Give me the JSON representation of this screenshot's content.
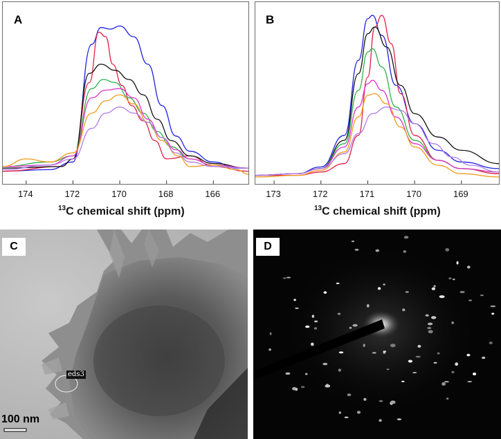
{
  "panels": {
    "A": {
      "label": "A",
      "xlabel_sup": "13",
      "xlabel_rest": "C chemical shift (ppm)",
      "ticks": [
        "174",
        "172",
        "170",
        "168",
        "166"
      ]
    },
    "B": {
      "label": "B",
      "xlabel_sup": "13",
      "xlabel_rest": "C chemical shift (ppm)",
      "ticks": [
        "173",
        "172",
        "171",
        "170",
        "169"
      ]
    },
    "C": {
      "label": "C",
      "scale_label": "100 nm",
      "annotation": "eds3"
    },
    "D": {
      "label": "D"
    }
  },
  "chart_data": [
    {
      "type": "line",
      "panel": "A",
      "xlabel": "13C chemical shift (ppm)",
      "xlim": [
        175,
        164.5
      ],
      "x_reversed": true,
      "series": [
        {
          "color": "#1f1fe0",
          "x": [
            175,
            173,
            172,
            171.2,
            170.8,
            170.4,
            170.0,
            169.4,
            168.8,
            168.2,
            167.6,
            167,
            166,
            165,
            164.5
          ],
          "y": [
            0.02,
            0.03,
            0.08,
            0.85,
            0.96,
            0.95,
            0.97,
            0.9,
            0.72,
            0.45,
            0.25,
            0.15,
            0.08,
            0.04,
            0.04
          ]
        },
        {
          "color": "#e0204a",
          "x": [
            175,
            172.5,
            172,
            171.3,
            170.9,
            170.6,
            170.3,
            169.9,
            169.5,
            169.0,
            168.5,
            168,
            167,
            166,
            164.5
          ],
          "y": [
            0.02,
            0.05,
            0.1,
            0.6,
            0.93,
            0.9,
            0.72,
            0.58,
            0.45,
            0.35,
            0.22,
            0.1,
            0.12,
            0.05,
            0.02
          ]
        },
        {
          "color": "#111111",
          "x": [
            175,
            172.5,
            172,
            171.3,
            170.8,
            170.2,
            169.6,
            169.0,
            168.4,
            167.8,
            167,
            166,
            164.5
          ],
          "y": [
            0.04,
            0.05,
            0.1,
            0.66,
            0.72,
            0.68,
            0.62,
            0.52,
            0.36,
            0.22,
            0.12,
            0.07,
            0.04
          ]
        },
        {
          "color": "#2bb34a",
          "x": [
            175,
            173,
            172,
            171.2,
            170.7,
            170.2,
            169.6,
            169.0,
            168.4,
            167.8,
            167,
            166,
            164.5
          ],
          "y": [
            0.05,
            0.08,
            0.12,
            0.56,
            0.62,
            0.6,
            0.5,
            0.4,
            0.28,
            0.18,
            0.1,
            0.06,
            0.04
          ]
        },
        {
          "color": "#e033c8",
          "x": [
            175,
            173,
            172,
            171.2,
            170.6,
            170.0,
            169.4,
            168.8,
            168.2,
            167.6,
            167,
            166,
            164.5
          ],
          "y": [
            0.05,
            0.06,
            0.12,
            0.5,
            0.55,
            0.56,
            0.5,
            0.36,
            0.24,
            0.16,
            0.1,
            0.06,
            0.04
          ]
        },
        {
          "color": "#f29a1a",
          "x": [
            175,
            174,
            173,
            172,
            171.2,
            170.6,
            170.0,
            169.4,
            168.8,
            168.2,
            167.5,
            167,
            166,
            165,
            164.5
          ],
          "y": [
            0.05,
            0.1,
            0.08,
            0.14,
            0.4,
            0.48,
            0.52,
            0.46,
            0.34,
            0.22,
            0.12,
            0.05,
            0.06,
            0.03,
            0.0
          ]
        },
        {
          "color": "#b07de8",
          "x": [
            175,
            173,
            172,
            171.2,
            170.6,
            170.0,
            169.4,
            168.8,
            168.2,
            167.6,
            167,
            166,
            164.5
          ],
          "y": [
            0.03,
            0.06,
            0.1,
            0.3,
            0.4,
            0.44,
            0.4,
            0.34,
            0.24,
            0.14,
            0.08,
            0.05,
            0.04
          ]
        }
      ]
    },
    {
      "type": "line",
      "panel": "B",
      "xlabel": "13C chemical shift (ppm)",
      "xlim": [
        173.4,
        168.2
      ],
      "x_reversed": true,
      "series": [
        {
          "color": "#1f1fe0",
          "x": [
            173.4,
            172.5,
            172.0,
            171.5,
            171.2,
            171.0,
            170.9,
            170.7,
            170.4,
            170.0,
            169.5,
            169.0,
            168.2
          ],
          "y": [
            0.01,
            0.02,
            0.06,
            0.25,
            0.7,
            0.95,
            0.97,
            0.85,
            0.55,
            0.32,
            0.16,
            0.09,
            0.05
          ]
        },
        {
          "color": "#e0204a",
          "x": [
            173.4,
            172.5,
            172.0,
            171.5,
            171.2,
            171.0,
            170.85,
            170.7,
            170.5,
            170.3,
            170.0,
            169.5,
            169.0,
            168.2
          ],
          "y": [
            0.01,
            0.01,
            0.03,
            0.08,
            0.25,
            0.6,
            0.9,
            0.97,
            0.8,
            0.5,
            0.25,
            0.1,
            0.05,
            0.02
          ]
        },
        {
          "color": "#111111",
          "x": [
            173.4,
            172.5,
            172.0,
            171.5,
            171.2,
            171.0,
            170.85,
            170.6,
            170.3,
            170.0,
            169.5,
            169.0,
            168.2
          ],
          "y": [
            0.01,
            0.02,
            0.05,
            0.22,
            0.62,
            0.86,
            0.9,
            0.78,
            0.55,
            0.38,
            0.24,
            0.16,
            0.08
          ]
        },
        {
          "color": "#2bb34a",
          "x": [
            173.4,
            172.5,
            172.0,
            171.5,
            171.2,
            171.0,
            170.9,
            170.7,
            170.4,
            170.0,
            169.5,
            169.0,
            168.2
          ],
          "y": [
            0.01,
            0.02,
            0.05,
            0.2,
            0.52,
            0.75,
            0.77,
            0.66,
            0.42,
            0.22,
            0.1,
            0.05,
            0.03
          ]
        },
        {
          "color": "#e033c8",
          "x": [
            173.4,
            172.5,
            172.0,
            171.5,
            171.2,
            171.0,
            170.9,
            170.7,
            170.4,
            170.0,
            169.5,
            169.0,
            168.2
          ],
          "y": [
            0.01,
            0.02,
            0.05,
            0.18,
            0.42,
            0.56,
            0.58,
            0.52,
            0.36,
            0.2,
            0.1,
            0.05,
            0.03
          ]
        },
        {
          "color": "#f29a1a",
          "x": [
            173.4,
            172.5,
            172.0,
            171.5,
            171.2,
            171.0,
            170.85,
            170.6,
            170.3,
            170.0,
            169.5,
            169.0,
            168.2
          ],
          "y": [
            0.0,
            0.01,
            0.04,
            0.15,
            0.36,
            0.49,
            0.5,
            0.44,
            0.3,
            0.18,
            0.07,
            0.02,
            0.0
          ]
        },
        {
          "color": "#b07de8",
          "x": [
            173.4,
            172.5,
            172.0,
            171.5,
            171.2,
            170.9,
            170.6,
            170.3,
            170.0,
            169.6,
            169.2,
            168.8,
            168.2
          ],
          "y": [
            0.01,
            0.02,
            0.05,
            0.14,
            0.26,
            0.38,
            0.42,
            0.4,
            0.32,
            0.2,
            0.12,
            0.07,
            0.03
          ]
        }
      ]
    }
  ]
}
